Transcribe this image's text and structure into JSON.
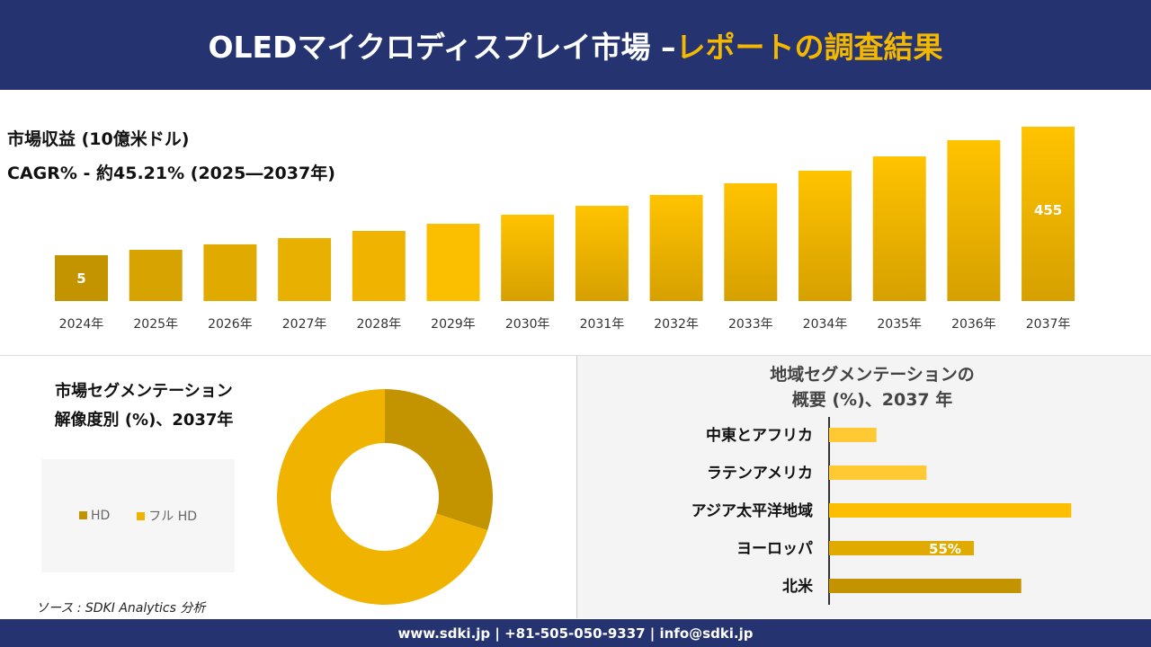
{
  "header": {
    "title_white": "OLEDマイクロディスプレイ市場 –",
    "title_yellow": "レポートの調査結果"
  },
  "revenue": {
    "title": "市場収益 (10億米ドル)",
    "cagr": "CAGR% - 約45.21% (2025―2037年)"
  },
  "chart_data": [
    {
      "type": "bar",
      "categories": [
        "2024年",
        "2025年",
        "2026年",
        "2027年",
        "2028年",
        "2029年",
        "2030年",
        "2031年",
        "2032年",
        "2033年",
        "2034年",
        "2035年",
        "2036年",
        "2037年"
      ],
      "values": [
        5,
        24,
        43,
        65,
        90,
        115,
        147,
        178,
        216,
        257,
        301,
        351,
        408,
        455
      ],
      "data_labels": {
        "0": "5",
        "13": "455"
      },
      "colors": [
        "#c49400",
        "#d6a300",
        "#e0aa00",
        "#e8b000",
        "#f0b400",
        "#fcbf00"
      ]
    },
    {
      "type": "pie",
      "title": "市場セグメンテーション 解像度別 (%)、2037年",
      "donut": true,
      "categories": [
        "HD",
        "フル HD"
      ],
      "values": [
        30,
        70
      ],
      "colors": [
        "#c49400",
        "#f0b400"
      ],
      "legend": "left"
    },
    {
      "type": "bar",
      "orientation": "horizontal",
      "title": "地域セグメンテーションの 概要 (%)、2037 年",
      "categories": [
        "中東とアフリカ",
        "ラテンアメリカ",
        "アジア太平洋地域",
        "ヨーロッパ",
        "北米"
      ],
      "values": [
        18,
        37,
        92,
        55,
        73
      ],
      "data_labels": {
        "3": "55%"
      },
      "colors": [
        "#ffc933",
        "#ffc933",
        "#fcbf00",
        "#e0aa00",
        "#c49400"
      ]
    }
  ],
  "segment": {
    "title1": "市場セグメンテーション",
    "title2": "解像度別 (%)、2037年"
  },
  "region": {
    "title1": "地域セグメンテーションの",
    "title2": "概要 (%)、2037 年"
  },
  "source": "ソース : SDKI Analytics 分析",
  "footer": "www.sdki.jp | +81-505-050-9337 | info@sdki.jp"
}
